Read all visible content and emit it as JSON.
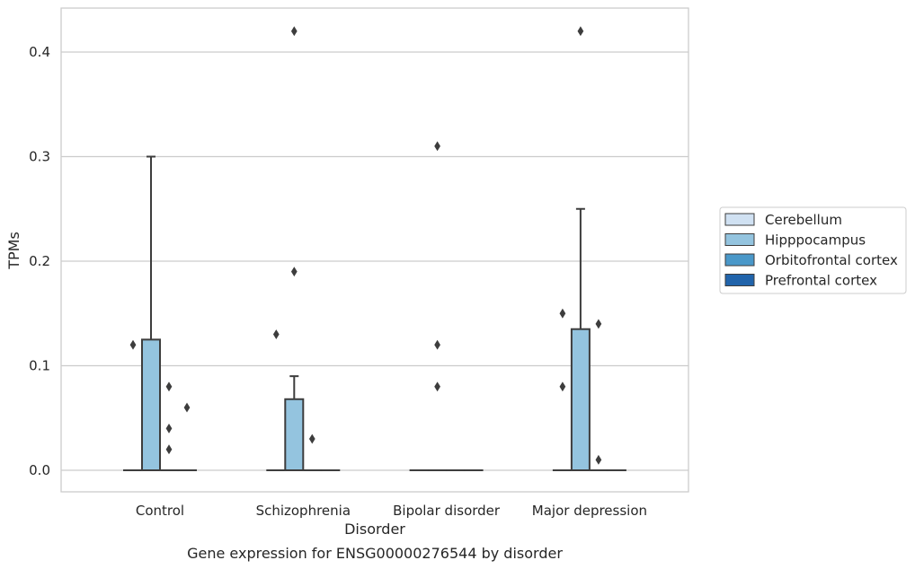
{
  "chart_data": {
    "type": "box",
    "title": "Gene expression for ENSG00000276544 by disorder",
    "xlabel": "Disorder",
    "ylabel": "TPMs",
    "categories": [
      "Control",
      "Schizophrenia",
      "Bipolar disorder",
      "Major depression"
    ],
    "y_ticks": [
      "0.0",
      "0.1",
      "0.2",
      "0.3",
      "0.4"
    ],
    "ylim": [
      -0.02,
      0.44
    ],
    "grid": true,
    "legend_position": "right",
    "series": [
      {
        "name": "Cerebellum",
        "color": "#d0e1f2",
        "boxes": [
          {
            "q1": 0,
            "median": 0,
            "q3": 0,
            "whisker_low": 0,
            "whisker_high": 0,
            "outliers": [
              0.12
            ]
          },
          {
            "q1": 0,
            "median": 0,
            "q3": 0,
            "whisker_low": 0,
            "whisker_high": 0,
            "outliers": [
              0.13
            ]
          },
          {
            "q1": 0,
            "median": 0,
            "q3": 0,
            "whisker_low": 0,
            "whisker_high": 0,
            "outliers": []
          },
          {
            "q1": 0,
            "median": 0,
            "q3": 0,
            "whisker_low": 0,
            "whisker_high": 0,
            "outliers": [
              0.15,
              0.08
            ]
          }
        ]
      },
      {
        "name": "Hipppocampus",
        "color": "#94c4df",
        "boxes": [
          {
            "q1": 0,
            "median": 0,
            "q3": 0.125,
            "whisker_low": 0,
            "whisker_high": 0.3,
            "outliers": []
          },
          {
            "q1": 0,
            "median": 0,
            "q3": 0.068,
            "whisker_low": 0,
            "whisker_high": 0.09,
            "outliers": [
              0.42,
              0.19
            ]
          },
          {
            "q1": 0,
            "median": 0,
            "q3": 0,
            "whisker_low": 0,
            "whisker_high": 0,
            "outliers": [
              0.31,
              0.12,
              0.08
            ]
          },
          {
            "q1": 0,
            "median": 0,
            "q3": 0.135,
            "whisker_low": 0,
            "whisker_high": 0.25,
            "outliers": [
              0.42
            ]
          }
        ]
      },
      {
        "name": "Orbitofrontal cortex",
        "color": "#4a98c9",
        "boxes": [
          {
            "q1": 0,
            "median": 0,
            "q3": 0,
            "whisker_low": 0,
            "whisker_high": 0,
            "outliers": [
              0.08,
              0.04,
              0.02
            ]
          },
          {
            "q1": 0,
            "median": 0,
            "q3": 0,
            "whisker_low": 0,
            "whisker_high": 0,
            "outliers": [
              0.03
            ]
          },
          {
            "q1": 0,
            "median": 0,
            "q3": 0,
            "whisker_low": 0,
            "whisker_high": 0,
            "outliers": []
          },
          {
            "q1": 0,
            "median": 0,
            "q3": 0,
            "whisker_low": 0,
            "whisker_high": 0,
            "outliers": [
              0.14,
              0.01
            ]
          }
        ]
      },
      {
        "name": "Prefrontal cortex",
        "color": "#2164ab",
        "boxes": [
          {
            "q1": 0,
            "median": 0,
            "q3": 0,
            "whisker_low": 0,
            "whisker_high": 0,
            "outliers": [
              0.06
            ]
          },
          {
            "q1": 0,
            "median": 0,
            "q3": 0,
            "whisker_low": 0,
            "whisker_high": 0,
            "outliers": []
          },
          {
            "q1": 0,
            "median": 0,
            "q3": 0,
            "whisker_low": 0,
            "whisker_high": 0,
            "outliers": []
          },
          {
            "q1": 0,
            "median": 0,
            "q3": 0,
            "whisker_low": 0,
            "whisker_high": 0,
            "outliers": []
          }
        ]
      }
    ]
  }
}
